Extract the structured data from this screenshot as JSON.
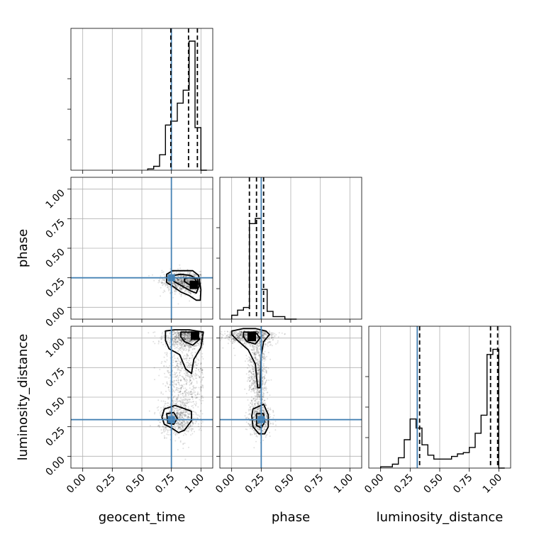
{
  "chart_data": {
    "type": "corner",
    "parameters": [
      "geocent_time",
      "phase",
      "luminosity_distance"
    ],
    "axis_range": [
      -0.1,
      1.1
    ],
    "tick_values": [
      0.0,
      0.25,
      0.5,
      0.75,
      1.0
    ],
    "tick_labels": [
      "0.00",
      "0.25",
      "0.50",
      "0.75",
      "1.00"
    ],
    "grid": true,
    "colors": {
      "truth": "#4682b4",
      "histogram": "#000000",
      "quantile": "#000000",
      "contour": "#000000"
    },
    "truths": {
      "geocent_time": 0.75,
      "phase": 0.25,
      "luminosity_distance": 0.31
    },
    "quantiles": {
      "geocent_time": [
        0.745,
        0.895,
        0.97
      ],
      "phase": [
        0.15,
        0.21,
        0.27
      ],
      "luminosity_distance": [
        0.33,
        0.93,
        0.99
      ]
    },
    "histograms": {
      "geocent_time": {
        "edges": [
          0.55,
          0.6,
          0.65,
          0.7,
          0.75,
          0.8,
          0.85,
          0.9,
          0.95,
          1.0,
          1.05
        ],
        "counts": [
          0.01,
          0.03,
          0.12,
          0.35,
          0.38,
          0.52,
          0.62,
          1.0,
          0.33,
          0.0
        ]
      },
      "phase": {
        "edges": [
          0.0,
          0.05,
          0.1,
          0.15,
          0.2,
          0.25,
          0.3,
          0.35,
          0.4,
          0.45,
          0.5,
          0.55
        ],
        "counts": [
          0.03,
          0.07,
          0.09,
          0.74,
          0.78,
          0.23,
          0.06,
          0.02,
          0.02,
          0.0,
          0.0
        ]
      },
      "luminosity_distance": {
        "edges": [
          0.0,
          0.05,
          0.1,
          0.15,
          0.2,
          0.25,
          0.3,
          0.35,
          0.4,
          0.45,
          0.5,
          0.55,
          0.6,
          0.65,
          0.7,
          0.75,
          0.8,
          0.85,
          0.9,
          0.95,
          1.0,
          1.05
        ],
        "counts": [
          0.01,
          0.01,
          0.03,
          0.08,
          0.22,
          0.38,
          0.31,
          0.18,
          0.1,
          0.07,
          0.07,
          0.07,
          0.09,
          0.11,
          0.12,
          0.16,
          0.27,
          0.41,
          0.88,
          0.92,
          0.0
        ]
      }
    },
    "contours": {
      "phase_vs_geocent_time": {
        "outer": [
          [
            0.71,
            0.21
          ],
          [
            0.76,
            0.18
          ],
          [
            0.83,
            0.13
          ],
          [
            0.9,
            0.1
          ],
          [
            0.96,
            0.06
          ],
          [
            0.995,
            0.06
          ],
          [
            1.0,
            0.15
          ],
          [
            0.98,
            0.27
          ],
          [
            0.93,
            0.31
          ],
          [
            0.85,
            0.31
          ],
          [
            0.76,
            0.31
          ],
          [
            0.71,
            0.28
          ]
        ],
        "inner": [
          [
            0.77,
            0.22
          ],
          [
            0.84,
            0.18
          ],
          [
            0.91,
            0.14
          ],
          [
            0.96,
            0.12
          ],
          [
            0.985,
            0.18
          ],
          [
            0.97,
            0.24
          ],
          [
            0.91,
            0.27
          ],
          [
            0.83,
            0.28
          ],
          [
            0.77,
            0.27
          ]
        ],
        "core": [
          [
            0.86,
            0.22
          ],
          [
            0.92,
            0.18
          ],
          [
            0.955,
            0.16
          ],
          [
            0.97,
            0.2
          ],
          [
            0.95,
            0.24
          ],
          [
            0.9,
            0.25
          ],
          [
            0.86,
            0.24
          ]
        ],
        "peak": [
          0.94,
          0.19
        ]
      },
      "luminosity_distance_vs_geocent_time": {
        "outer": [
          [
            0.7,
            1.06
          ],
          [
            0.78,
            1.07
          ],
          [
            0.9,
            1.07
          ],
          [
            1.02,
            1.05
          ],
          [
            1.0,
            0.92
          ],
          [
            0.94,
            0.82
          ],
          [
            0.92,
            0.7
          ],
          [
            0.87,
            0.74
          ],
          [
            0.82,
            0.86
          ],
          [
            0.73,
            0.91
          ],
          [
            0.7,
            0.98
          ],
          [
            0.7,
            1.04
          ]
        ],
        "inner": [
          [
            0.83,
            1.05
          ],
          [
            0.95,
            1.05
          ],
          [
            0.99,
            0.99
          ],
          [
            0.93,
            0.94
          ],
          [
            0.86,
            0.97
          ],
          [
            0.83,
            1.01
          ]
        ],
        "outer_low": [
          [
            0.69,
            0.4
          ],
          [
            0.78,
            0.43
          ],
          [
            0.84,
            0.41
          ],
          [
            0.92,
            0.38
          ],
          [
            0.92,
            0.3
          ],
          [
            0.86,
            0.22
          ],
          [
            0.81,
            0.2
          ],
          [
            0.75,
            0.24
          ],
          [
            0.69,
            0.27
          ],
          [
            0.67,
            0.33
          ]
        ],
        "inner_low": [
          [
            0.71,
            0.36
          ],
          [
            0.77,
            0.37
          ],
          [
            0.8,
            0.32
          ],
          [
            0.77,
            0.27
          ],
          [
            0.72,
            0.28
          ]
        ],
        "peak": [
          0.95,
          1.02
        ]
      },
      "luminosity_distance_vs_phase": {
        "outer": [
          [
            0.0,
            1.06
          ],
          [
            0.1,
            1.08
          ],
          [
            0.2,
            1.08
          ],
          [
            0.29,
            1.06
          ],
          [
            0.32,
            1.03
          ],
          [
            0.27,
            0.97
          ],
          [
            0.25,
            0.85
          ],
          [
            0.24,
            0.58
          ],
          [
            0.22,
            0.58
          ],
          [
            0.2,
            0.78
          ],
          [
            0.14,
            0.9
          ],
          [
            0.05,
            0.98
          ],
          [
            0.0,
            1.03
          ]
        ],
        "inner": [
          [
            0.1,
            1.05
          ],
          [
            0.2,
            1.05
          ],
          [
            0.24,
            1.0
          ],
          [
            0.2,
            0.95
          ],
          [
            0.13,
            0.97
          ],
          [
            0.1,
            1.01
          ]
        ],
        "outer_low": [
          [
            0.18,
            0.4
          ],
          [
            0.27,
            0.44
          ],
          [
            0.31,
            0.35
          ],
          [
            0.31,
            0.25
          ],
          [
            0.28,
            0.19
          ],
          [
            0.23,
            0.19
          ],
          [
            0.18,
            0.25
          ],
          [
            0.17,
            0.34
          ]
        ],
        "inner_low": [
          [
            0.21,
            0.36
          ],
          [
            0.27,
            0.36
          ],
          [
            0.28,
            0.29
          ],
          [
            0.25,
            0.24
          ],
          [
            0.21,
            0.26
          ]
        ],
        "peak": [
          0.17,
          1.01
        ]
      }
    }
  }
}
